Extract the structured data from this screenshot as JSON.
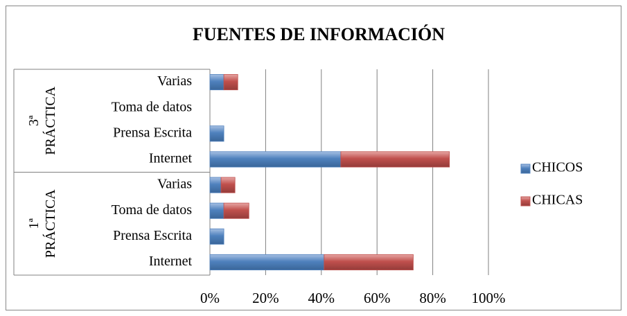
{
  "chart_data": {
    "type": "stacked-barh",
    "title": "FUENTES DE INFORMACIÓN",
    "categories": [
      "Internet",
      "Prensa Escrita",
      "Toma de datos",
      "Varias",
      "Internet",
      "Prensa Escrita",
      "Toma de datos",
      "Varias"
    ],
    "category_groups": [
      {
        "label": [
          "1ª",
          "PRÁCTICA"
        ]
      },
      {
        "label": [
          "3ª",
          "PRÁCTICA"
        ]
      }
    ],
    "series": [
      {
        "name": "CHICOS",
        "color": "#4f81bd",
        "values": [
          41,
          5,
          5,
          4,
          47,
          5,
          0,
          5
        ]
      },
      {
        "name": "CHICAS",
        "color": "#c0504d",
        "values": [
          32,
          0,
          9,
          5,
          39,
          0,
          0,
          5
        ]
      }
    ],
    "xlim": [
      0,
      100
    ],
    "xticks": [
      {
        "value": 0,
        "label": "0%"
      },
      {
        "value": 20,
        "label": "20%"
      },
      {
        "value": 40,
        "label": "40%"
      },
      {
        "value": 60,
        "label": "60%"
      },
      {
        "value": 80,
        "label": "80%"
      },
      {
        "value": 100,
        "label": "100%"
      }
    ],
    "grid": true,
    "legend": "right"
  }
}
